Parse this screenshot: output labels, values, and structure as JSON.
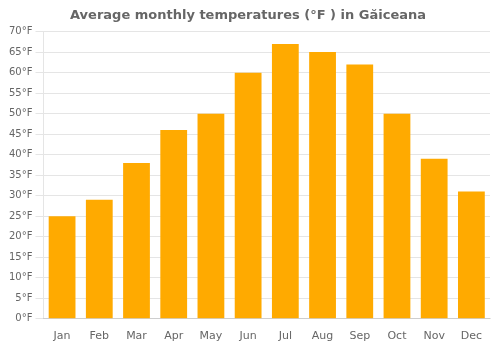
{
  "chart_data": {
    "type": "bar",
    "title": "Average monthly temperatures (°F ) in Găiceana",
    "categories": [
      "Jan",
      "Feb",
      "Mar",
      "Apr",
      "May",
      "Jun",
      "Jul",
      "Aug",
      "Sep",
      "Oct",
      "Nov",
      "Dec"
    ],
    "values": [
      25,
      29,
      38,
      46,
      50,
      60,
      67,
      65,
      62,
      50,
      39,
      31
    ],
    "color": "#FFAA00",
    "ylim": [
      0,
      70
    ],
    "yticks": [
      {
        "value": 0,
        "label": "0°F"
      },
      {
        "value": 5,
        "label": "5°F"
      },
      {
        "value": 10,
        "label": "10°F"
      },
      {
        "value": 15,
        "label": "15°F"
      },
      {
        "value": 20,
        "label": "20°F"
      },
      {
        "value": 25,
        "label": "25°F"
      },
      {
        "value": 30,
        "label": "30°F"
      },
      {
        "value": 35,
        "label": "35°F"
      },
      {
        "value": 40,
        "label": "40°F"
      },
      {
        "value": 45,
        "label": "45°F"
      },
      {
        "value": 50,
        "label": "50°F"
      },
      {
        "value": 55,
        "label": "55°F"
      },
      {
        "value": 60,
        "label": "60°F"
      },
      {
        "value": 65,
        "label": "65°F"
      },
      {
        "value": 70,
        "label": "70°F"
      }
    ],
    "grid": true
  }
}
